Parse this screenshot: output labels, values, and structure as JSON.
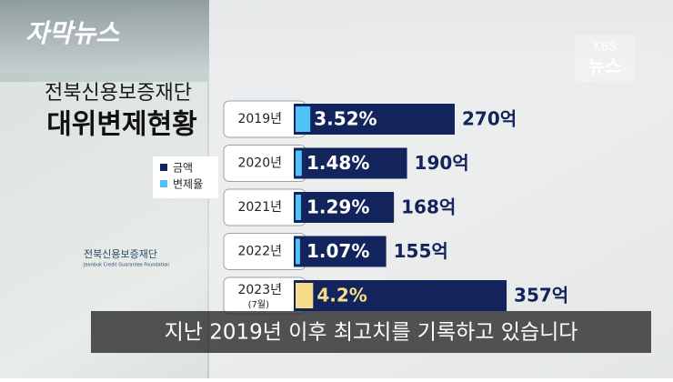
{
  "branding": {
    "program": "자막뉴스",
    "broadcaster": "KBS",
    "news": "뉴스"
  },
  "logo": {
    "name": "전북신용보증재단",
    "english": "Jeonbuk Credit Guarantee Foundation"
  },
  "caption": "지난 2019년 이후 최고치를 기록하고 있습니다",
  "chart_data": {
    "type": "bar",
    "orientation": "horizontal",
    "title": "전북신용보증재단",
    "subtitle": "대위변제현황",
    "categories": [
      "2019년",
      "2020년",
      "2021년",
      "2022년",
      "2023년"
    ],
    "category_notes": [
      null,
      null,
      null,
      null,
      "(7월)"
    ],
    "xlim": [
      0,
      450
    ],
    "series": [
      {
        "name": "금액",
        "color": "#13235b",
        "values": [
          270,
          190,
          168,
          155,
          357
        ],
        "value_labels": [
          "270억",
          "190억",
          "168억",
          "155억",
          "357억"
        ]
      },
      {
        "name": "변제율",
        "color": "#4fc3f7",
        "values": [
          3.52,
          1.48,
          1.29,
          1.07,
          4.2
        ],
        "value_labels": [
          "3.52%",
          "1.48%",
          "1.29%",
          "1.07%",
          "4.2%"
        ],
        "colors": [
          "#4fc3f7",
          "#4fc3f7",
          "#4fc3f7",
          "#4fc3f7",
          "#f7dc8c"
        ],
        "label_colors": [
          "#ffffff",
          "#ffffff",
          "#ffffff",
          "#ffffff",
          "#f7dc8c"
        ]
      }
    ]
  }
}
